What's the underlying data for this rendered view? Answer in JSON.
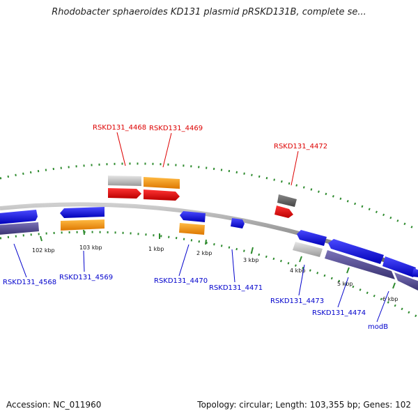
{
  "title": "Rhodobacter sphaeroides KD131 plasmid pRSKD131B, complete se...",
  "footer": {
    "accession": "Accession: NC_011960",
    "summary": "Topology: circular; Length: 103,355 bp; Genes: 102"
  },
  "colors": {
    "backbone": "#8c8c8c",
    "tick": "#2e8b2e",
    "cds_forward": "#1111dd",
    "cds_reverse_orange": "#ff9900",
    "cds_red": "#ee0000",
    "rna_gray": "#c0c0c0",
    "dark_gray": "#666666",
    "navy": "#4b4486",
    "label_red": "#dd0000",
    "label_blue": "#0000cc"
  },
  "ticks": [
    {
      "label": "102 kbp"
    },
    {
      "label": "103 kbp"
    },
    {
      "label": "1 kbp"
    },
    {
      "label": "2 kbp"
    },
    {
      "label": "3 kbp"
    },
    {
      "label": "4 kbp"
    },
    {
      "label": "5 kbp"
    },
    {
      "label": "6 kbp"
    }
  ],
  "labels_top": [
    {
      "text": "RSKD131_4468"
    },
    {
      "text": "RSKD131_4469"
    },
    {
      "text": "RSKD131_4472"
    }
  ],
  "labels_bottom": [
    {
      "text": "RSKD131_4568"
    },
    {
      "text": "RSKD131_4569"
    },
    {
      "text": "RSKD131_4470"
    },
    {
      "text": "RSKD131_4471"
    },
    {
      "text": "RSKD131_4473"
    },
    {
      "text": "RSKD131_4474"
    },
    {
      "text": "modB"
    }
  ]
}
